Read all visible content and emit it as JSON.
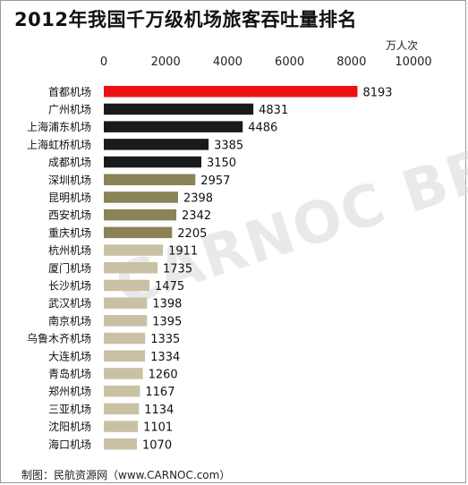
{
  "title": "2012年我国千万级机场旅客吞吐量排名",
  "unit_label": "万人次",
  "footer": "制图：民航资源网（www.CARNOC.com）",
  "watermark": "CARNOC BBS",
  "chart_data": {
    "type": "bar",
    "orientation": "horizontal",
    "title": "2012年我国千万级机场旅客吞吐量排名",
    "xlabel": "万人次",
    "ylabel": "",
    "xlim": [
      0,
      10000
    ],
    "ticks": [
      0,
      2000,
      4000,
      6000,
      8000,
      10000
    ],
    "grid": false,
    "categories": [
      "首都机场",
      "广州机场",
      "上海浦东机场",
      "上海虹桥机场",
      "成都机场",
      "深圳机场",
      "昆明机场",
      "西安机场",
      "重庆机场",
      "杭州机场",
      "厦门机场",
      "长沙机场",
      "武汉机场",
      "南京机场",
      "乌鲁木齐机场",
      "大连机场",
      "青岛机场",
      "郑州机场",
      "三亚机场",
      "沈阳机场",
      "海口机场"
    ],
    "values": [
      8193,
      4831,
      4486,
      3385,
      3150,
      2957,
      2398,
      2342,
      2205,
      1911,
      1735,
      1475,
      1398,
      1395,
      1335,
      1334,
      1260,
      1167,
      1134,
      1101,
      1070
    ],
    "colors": [
      "#ee1111",
      "#1a1a1a",
      "#1a1a1a",
      "#1a1a1a",
      "#1a1a1a",
      "#8b8256",
      "#8b8256",
      "#8b8256",
      "#8b8256",
      "#c9c1a4",
      "#c9c1a4",
      "#c9c1a4",
      "#c9c1a4",
      "#c9c1a4",
      "#c9c1a4",
      "#c9c1a4",
      "#c9c1a4",
      "#c9c1a4",
      "#c9c1a4",
      "#c9c1a4",
      "#c9c1a4"
    ]
  }
}
